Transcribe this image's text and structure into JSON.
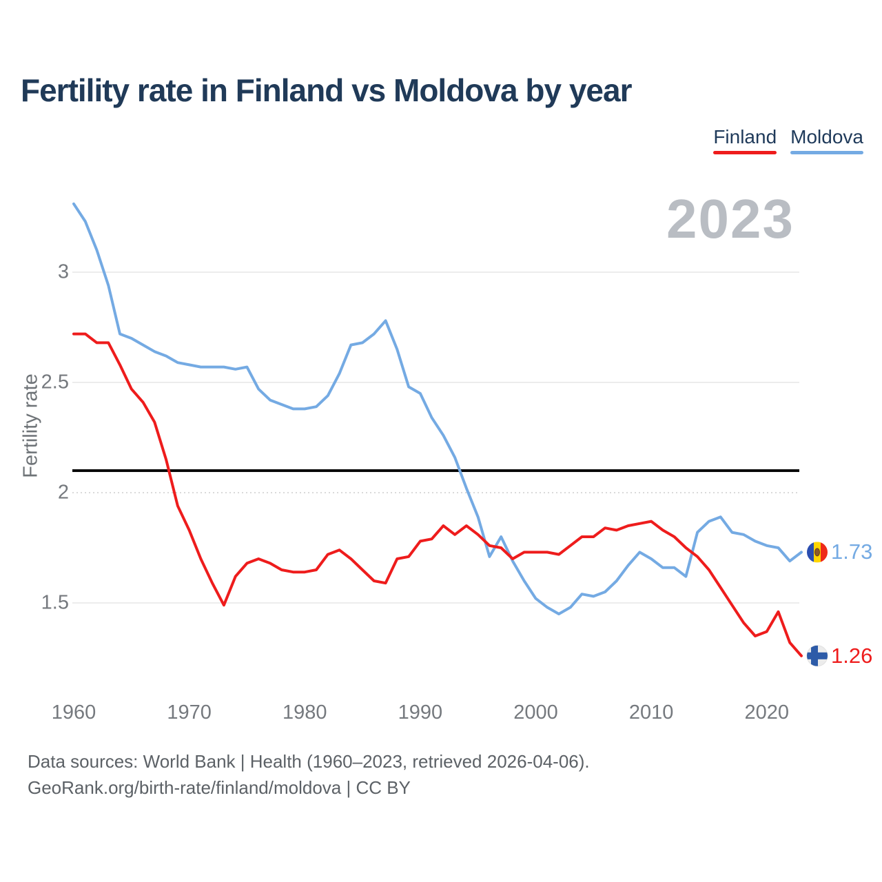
{
  "header": {
    "title": "Fertility rate in Finland vs Moldova by year"
  },
  "legend": [
    {
      "label": "Finland",
      "color": "#ee1c1c"
    },
    {
      "label": "Moldova",
      "color": "#74aae3"
    }
  ],
  "watermark": "2023",
  "chart_data": {
    "type": "line",
    "title": "Fertility rate in Finland vs Moldova by year",
    "xlabel": "",
    "ylabel": "Fertility rate",
    "grid": "horizontal",
    "legend_position": "top-right",
    "xticks": [
      1960,
      1970,
      1980,
      1990,
      2000,
      2010,
      2020
    ],
    "yticks": [
      1.5,
      2,
      2.5,
      3
    ],
    "ylim": [
      1.15,
      3.4
    ],
    "xlim": [
      1960,
      2023
    ],
    "reference_line": {
      "value": 2.1,
      "color": "#0a0a0a"
    },
    "x": [
      1960,
      1961,
      1962,
      1963,
      1964,
      1965,
      1966,
      1967,
      1968,
      1969,
      1970,
      1971,
      1972,
      1973,
      1974,
      1975,
      1976,
      1977,
      1978,
      1979,
      1980,
      1981,
      1982,
      1983,
      1984,
      1985,
      1986,
      1987,
      1988,
      1989,
      1990,
      1991,
      1992,
      1993,
      1994,
      1995,
      1996,
      1997,
      1998,
      1999,
      2000,
      2001,
      2002,
      2003,
      2004,
      2005,
      2006,
      2007,
      2008,
      2009,
      2010,
      2011,
      2012,
      2013,
      2014,
      2015,
      2016,
      2017,
      2018,
      2019,
      2020,
      2021,
      2022,
      2023
    ],
    "series": [
      {
        "name": "Moldova",
        "color": "#74aae3",
        "flag_icon": "moldova-flag-icon",
        "values": [
          3.31,
          3.23,
          3.1,
          2.94,
          2.72,
          2.7,
          2.67,
          2.64,
          2.62,
          2.59,
          2.58,
          2.57,
          2.57,
          2.57,
          2.56,
          2.57,
          2.47,
          2.42,
          2.4,
          2.38,
          2.38,
          2.39,
          2.44,
          2.54,
          2.67,
          2.68,
          2.72,
          2.78,
          2.65,
          2.48,
          2.45,
          2.34,
          2.26,
          2.16,
          2.02,
          1.89,
          1.71,
          1.8,
          1.69,
          1.6,
          1.52,
          1.48,
          1.45,
          1.48,
          1.54,
          1.53,
          1.55,
          1.6,
          1.67,
          1.73,
          1.7,
          1.66,
          1.66,
          1.62,
          1.82,
          1.87,
          1.89,
          1.82,
          1.81,
          1.78,
          1.76,
          1.75,
          1.69,
          1.73
        ]
      },
      {
        "name": "Finland",
        "color": "#ee1c1c",
        "flag_icon": "finland-flag-icon",
        "values": [
          2.72,
          2.72,
          2.68,
          2.68,
          2.58,
          2.47,
          2.41,
          2.32,
          2.15,
          1.94,
          1.83,
          1.7,
          1.59,
          1.49,
          1.62,
          1.68,
          1.7,
          1.68,
          1.65,
          1.64,
          1.64,
          1.65,
          1.72,
          1.74,
          1.7,
          1.65,
          1.6,
          1.59,
          1.7,
          1.71,
          1.78,
          1.79,
          1.85,
          1.81,
          1.85,
          1.81,
          1.76,
          1.75,
          1.7,
          1.73,
          1.73,
          1.73,
          1.72,
          1.76,
          1.8,
          1.8,
          1.84,
          1.83,
          1.85,
          1.86,
          1.87,
          1.83,
          1.8,
          1.75,
          1.71,
          1.65,
          1.57,
          1.49,
          1.41,
          1.35,
          1.37,
          1.46,
          1.32,
          1.26
        ]
      }
    ],
    "end_labels": [
      {
        "series": "Moldova",
        "value": "1.73"
      },
      {
        "series": "Finland",
        "value": "1.26"
      }
    ]
  },
  "footer": {
    "line1": "Data sources: World Bank | Health (1960–2023, retrieved 2026-04-06).",
    "line2": "GeoRank.org/birth-rate/finland/moldova | CC BY"
  }
}
